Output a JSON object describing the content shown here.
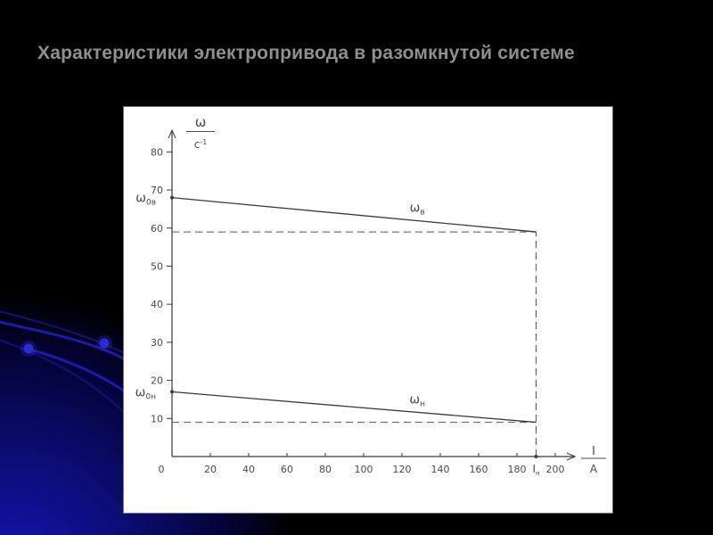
{
  "slide": {
    "title": "Характеристики электропривода в разомкнутой системе",
    "title_color": "#8f8f8f",
    "background_color": "#000000",
    "accent_blue": "#1b1ba6",
    "panel_color": "#ffffff"
  },
  "chart_data": {
    "type": "line",
    "title": "Характеристики электропривода в разомкнутой системе",
    "xlabel": {
      "numerator": "I",
      "denominator": "A"
    },
    "ylabel": {
      "numerator": "ω",
      "denominator_base": "c",
      "denominator_sup": "-1"
    },
    "xlim": [
      0,
      210
    ],
    "ylim": [
      0,
      85
    ],
    "grid": false,
    "legend_position": "none",
    "x_ticks": [
      0,
      20,
      40,
      60,
      80,
      100,
      120,
      140,
      160,
      180,
      200
    ],
    "y_ticks": [
      10,
      20,
      30,
      40,
      50,
      60,
      70,
      80
    ],
    "nominal_current": {
      "label": "Iн",
      "value": 190
    },
    "series": [
      {
        "name": "ωв",
        "start_point_label": "ω0в",
        "points": [
          [
            0,
            68
          ],
          [
            190,
            59
          ]
        ],
        "label_x": 128
      },
      {
        "name": "ωн",
        "start_point_label": "ω0н",
        "points": [
          [
            0,
            17
          ],
          [
            190,
            9
          ]
        ],
        "label_x": 128
      }
    ],
    "dashed_guides": [
      {
        "orientation": "horizontal",
        "y": 59,
        "x_from": 0,
        "x_to": 190
      },
      {
        "orientation": "horizontal",
        "y": 9,
        "x_from": 0,
        "x_to": 190
      },
      {
        "orientation": "vertical",
        "x": 190,
        "y_from": 0,
        "y_to": 59
      }
    ],
    "line_color": "#3a3a3a",
    "guide_color": "#555555",
    "text_color": "#4a4a4a"
  }
}
